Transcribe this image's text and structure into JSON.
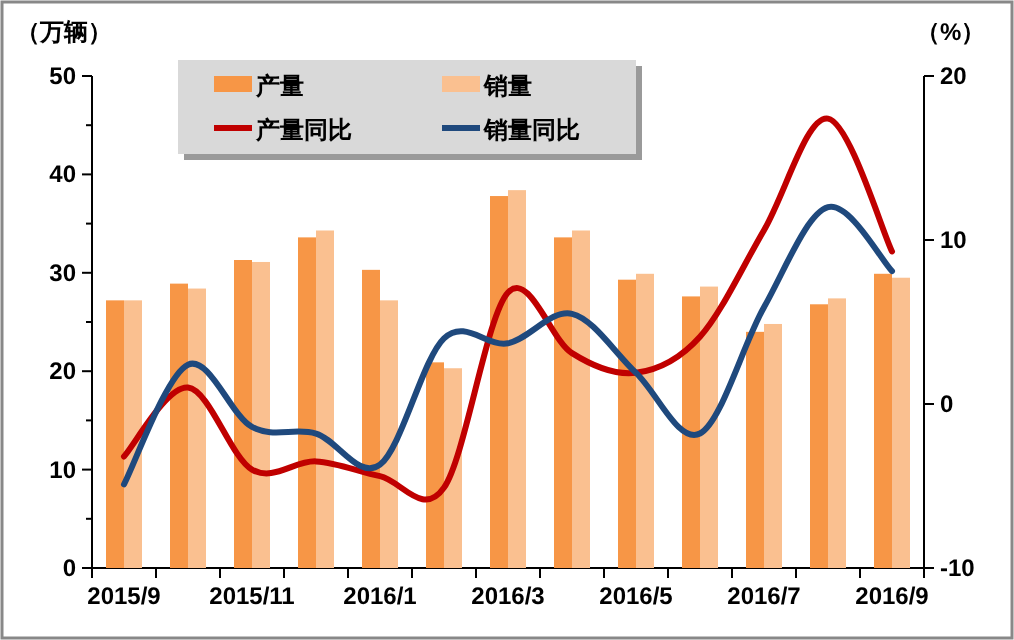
{
  "chart_data": {
    "type": "bar",
    "ylabel": "（万辆）",
    "y2label": "（%）",
    "legend": "top",
    "categories": [
      "2015/9",
      null,
      "2015/11",
      null,
      "2016/1",
      null,
      "2016/3",
      null,
      "2016/5",
      null,
      "2016/7",
      null,
      "2016/9"
    ],
    "ylim": [
      0,
      50
    ],
    "yticks": [
      0,
      {
        "value": 5,
        "label": null
      },
      10,
      {
        "value": 15,
        "label": null
      },
      20,
      {
        "value": 25,
        "label": null
      },
      30,
      {
        "value": 35,
        "label": null
      },
      40,
      {
        "value": 45,
        "label": null
      },
      50
    ],
    "y2lim": [
      -10,
      20
    ],
    "y2ticks": [
      -10,
      0,
      10,
      20
    ],
    "series": [
      {
        "name": "产量",
        "color": "#f79646",
        "values": [
          27.2,
          28.9,
          31.3,
          33.6,
          30.3,
          20.9,
          37.8,
          33.6,
          29.3,
          27.6,
          24.0,
          26.8,
          29.9
        ]
      },
      {
        "name": "销量",
        "color": "#fac090",
        "values": [
          27.2,
          28.4,
          31.1,
          34.3,
          27.2,
          20.3,
          38.4,
          34.3,
          29.9,
          28.6,
          24.8,
          27.4,
          29.5
        ]
      },
      {
        "name": "产量同比",
        "type": "line",
        "axis": "y2",
        "color": "#c00000",
        "values": [
          -3.2,
          1.0,
          -4.0,
          -3.5,
          -4.4,
          -5.1,
          6.8,
          3.1,
          1.9,
          4.1,
          10.6,
          17.4,
          9.3
        ]
      },
      {
        "name": "销量同比",
        "type": "line",
        "axis": "y2",
        "color": "#1f497d",
        "values": [
          -4.9,
          2.4,
          -1.4,
          -1.8,
          -3.7,
          4.0,
          3.7,
          5.5,
          1.9,
          -1.8,
          5.9,
          12.0,
          8.1
        ]
      }
    ]
  }
}
